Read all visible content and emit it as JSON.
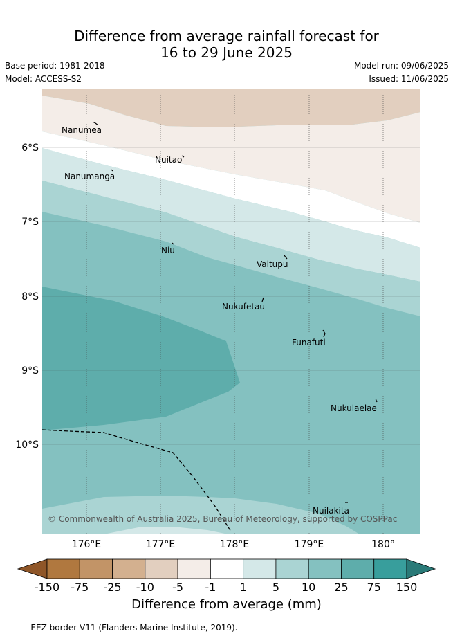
{
  "title_line1": "Difference from average rainfall forecast for",
  "title_line2": "16 to 29 June 2025",
  "base_period": "Base period: 1981-2018",
  "model": "Model: ACCESS-S2",
  "model_run": "Model run: 09/06/2025",
  "issued": "Issued: 11/06/2025",
  "copyright": "© Commonwealth of Australia 2025, Bureau of Meteorology, supported by COSPPac",
  "lat_ticks": [
    "6°S",
    "7°S",
    "8°S",
    "9°S",
    "10°S"
  ],
  "lon_ticks": [
    "176°E",
    "177°E",
    "178°E",
    "179°E",
    "180°"
  ],
  "places": [
    "Nanumea",
    "Nuitao",
    "Nanumanga",
    "Niu",
    "Vaitupu",
    "Nukufetau",
    "Funafuti",
    "Nukulaelae",
    "Nuilakita"
  ],
  "legend": {
    "labels": [
      "-150",
      "-75",
      "-25",
      "-10",
      "-5",
      "-1",
      "1",
      "5",
      "10",
      "25",
      "75",
      "150"
    ],
    "colors": [
      "#8f5628",
      "#b0783f",
      "#c29467",
      "#d3b08f",
      "#e2cfbf",
      "#f4ede8",
      "#ffffff",
      "#d4e8e8",
      "#aad4d3",
      "#84c1c0",
      "#5eadab",
      "#389e9c",
      "#2a7a78"
    ],
    "title": "Difference from average (mm)"
  },
  "footnote": "-- -- -- EEZ border V11 (Flanders Marine Institute, 2019)."
}
